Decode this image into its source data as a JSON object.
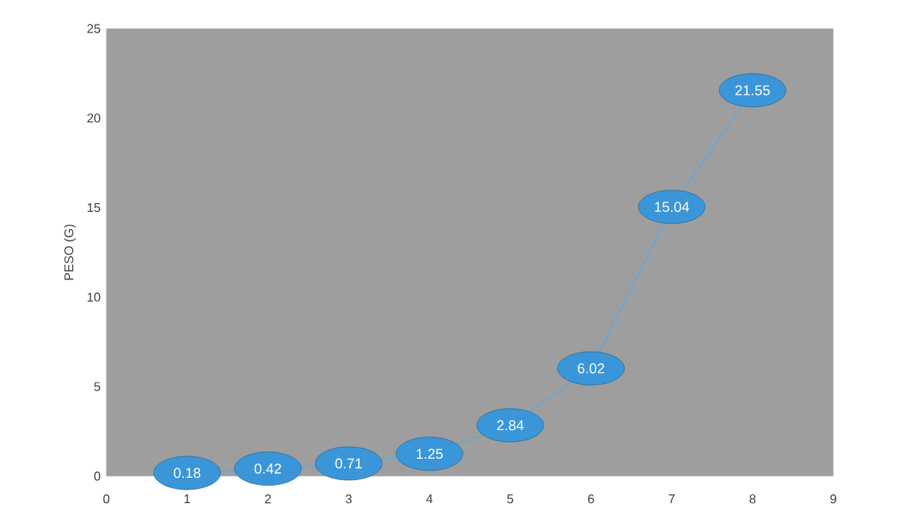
{
  "chart_data": {
    "type": "line",
    "ylabel": "PESO (G)",
    "x": [
      1,
      2,
      3,
      4,
      5,
      6,
      7,
      8
    ],
    "values": [
      0.18,
      0.42,
      0.71,
      1.25,
      2.84,
      6.02,
      15.04,
      21.55
    ],
    "color": "#5fa8dc",
    "data_labels": true,
    "xlim": [
      0,
      9
    ],
    "xticks": [
      0,
      1,
      2,
      3,
      4,
      5,
      6,
      7,
      8,
      9
    ],
    "ylim": [
      0,
      25
    ],
    "yticks": [
      0,
      5,
      10,
      15,
      20,
      25
    ],
    "marker": "circle",
    "grid": false
  }
}
